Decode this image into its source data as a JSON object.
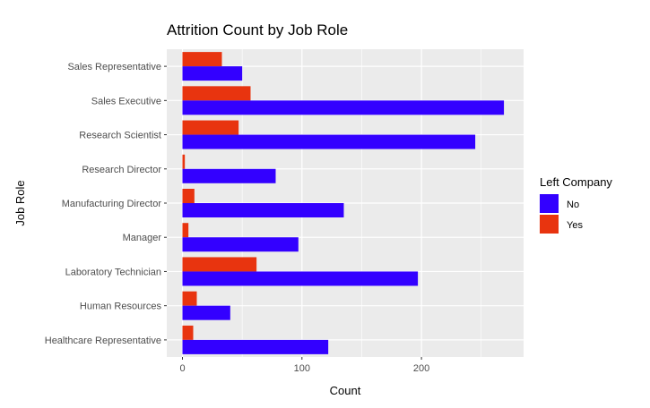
{
  "chart_data": {
    "type": "bar",
    "orientation": "horizontal",
    "title": "Attrition Count by Job Role",
    "xlabel": "Count",
    "ylabel": "Job Role",
    "xlim": [
      0,
      285
    ],
    "x_ticks": [
      0,
      100,
      200
    ],
    "grid": true,
    "legend_placement": "right",
    "legend_title": "Left Company",
    "categories": [
      "Sales Representative",
      "Sales Executive",
      "Research Scientist",
      "Research Director",
      "Manufacturing Director",
      "Manager",
      "Laboratory Technician",
      "Human Resources",
      "Healthcare Representative"
    ],
    "series": [
      {
        "name": "Yes",
        "color": "#e8340f",
        "values": [
          33,
          57,
          47,
          2,
          10,
          5,
          62,
          12,
          9
        ]
      },
      {
        "name": "No",
        "color": "#3300ff",
        "values": [
          50,
          269,
          245,
          78,
          135,
          97,
          197,
          40,
          122
        ]
      }
    ],
    "legend_order": [
      "No",
      "Yes"
    ],
    "panel_background": "#ebebeb",
    "grid_color": "#ffffff"
  }
}
